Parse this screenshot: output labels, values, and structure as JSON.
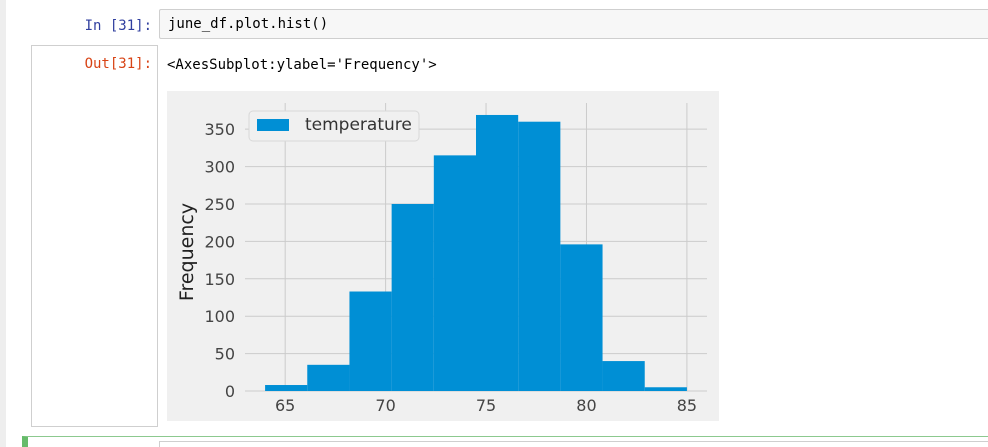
{
  "cell_in": {
    "prompt": "In [31]:",
    "code": "june_df.plot.hist()"
  },
  "cell_out": {
    "prompt": "Out[31]:",
    "text": "<AxesSubplot:ylabel='Frequency'>"
  },
  "chart_data": {
    "type": "bar",
    "bin_edges": [
      64,
      66.1,
      68.2,
      70.3,
      72.4,
      74.5,
      76.6,
      78.7,
      80.8,
      82.9,
      85
    ],
    "values": [
      8,
      35,
      133,
      250,
      315,
      369,
      360,
      196,
      40,
      5
    ],
    "series": [
      {
        "name": "temperature",
        "color": "#008fd5"
      }
    ],
    "xlabel": "",
    "ylabel": "Frequency",
    "xlim": [
      63,
      86
    ],
    "ylim": [
      0,
      385
    ],
    "xticks": [
      65,
      70,
      75,
      80,
      85
    ],
    "yticks": [
      0,
      50,
      100,
      150,
      200,
      250,
      300,
      350
    ],
    "grid": true,
    "legend_position": "upper-left",
    "style": {
      "background": "#f0f0f0",
      "grid_color": "#cbcbcb",
      "tick_color": "#444444"
    }
  }
}
